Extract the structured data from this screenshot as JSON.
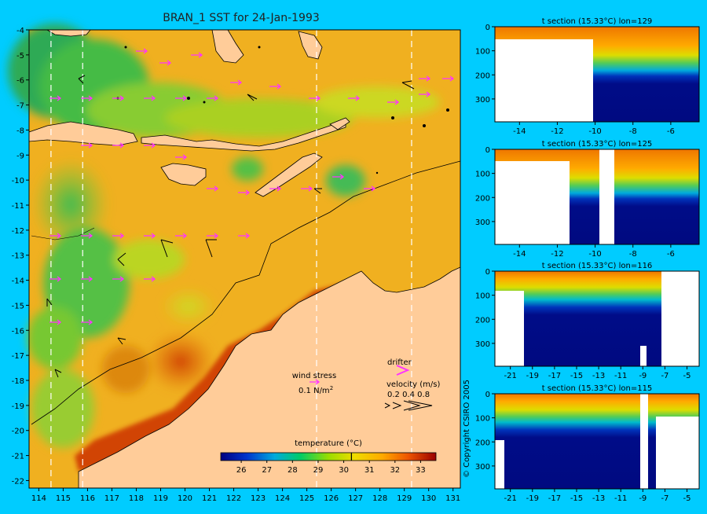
{
  "chart_data": [
    {
      "type": "heatmap",
      "title": "BRAN_1 SST for 24-Jan-1993",
      "x_ticks": [
        114,
        115,
        116,
        117,
        118,
        119,
        120,
        121,
        122,
        123,
        124,
        125,
        126,
        127,
        128,
        129,
        130,
        131
      ],
      "y_ticks": [
        -4,
        -5,
        -6,
        -7,
        -8,
        -9,
        -10,
        -11,
        -12,
        -13,
        -14,
        -15,
        -16,
        -17,
        -18,
        -19,
        -20,
        -21,
        -22
      ],
      "xlim": [
        113.6,
        131.3
      ],
      "ylim": [
        -22.3,
        -4
      ],
      "section_lines_lon": [
        114.5,
        115.8,
        125.4,
        129.3
      ],
      "colorbar": {
        "title": "temperature (°C)",
        "ticks": [
          26,
          27,
          28,
          29,
          30,
          31,
          32,
          33
        ],
        "range": [
          25.2,
          33.6
        ],
        "marker": 30.3
      },
      "legend": {
        "wind_stress_label": "wind stress",
        "wind_stress_scale": "0.1 N/m",
        "wind_stress_sup": "2",
        "drifter_label": "drifter",
        "velocity_label": "velocity (m/s)",
        "velocity_values": "0.2 0.4 0.8"
      }
    },
    {
      "type": "heatmap",
      "title": "t section (15.33°C) lon=129",
      "x_ticks": [
        -14,
        -12,
        -10,
        -8,
        -6
      ],
      "y_ticks": [
        0,
        100,
        200,
        300
      ],
      "xlim": [
        -15.3,
        -4.5
      ],
      "ylim": [
        0,
        395
      ]
    },
    {
      "type": "heatmap",
      "title": "t section (15.33°C) lon=125",
      "x_ticks": [
        -14,
        -12,
        -10,
        -8,
        -6
      ],
      "y_ticks": [
        0,
        100,
        200,
        300
      ],
      "xlim": [
        -15.3,
        -4.5
      ],
      "ylim": [
        0,
        395
      ]
    },
    {
      "type": "heatmap",
      "title": "t section (15.33°C) lon=116",
      "x_ticks": [
        -21,
        -19,
        -17,
        -15,
        -13,
        -11,
        -9,
        -7,
        -5
      ],
      "y_ticks": [
        0,
        100,
        200,
        300
      ],
      "xlim": [
        -22.4,
        -3.9
      ],
      "ylim": [
        0,
        395
      ]
    },
    {
      "type": "heatmap",
      "title": "t section (15.33°C) lon=115",
      "x_ticks": [
        -21,
        -19,
        -17,
        -15,
        -13,
        -11,
        -9,
        -7,
        -5
      ],
      "y_ticks": [
        0,
        100,
        200,
        300
      ],
      "xlim": [
        -22.4,
        -3.9
      ],
      "ylim": [
        0,
        395
      ]
    }
  ],
  "copyright": "© Copyright CSIRO 2005",
  "colors": {
    "background": "#00ccff",
    "land": "#ffcc99",
    "arrow": "#ff33ff"
  }
}
